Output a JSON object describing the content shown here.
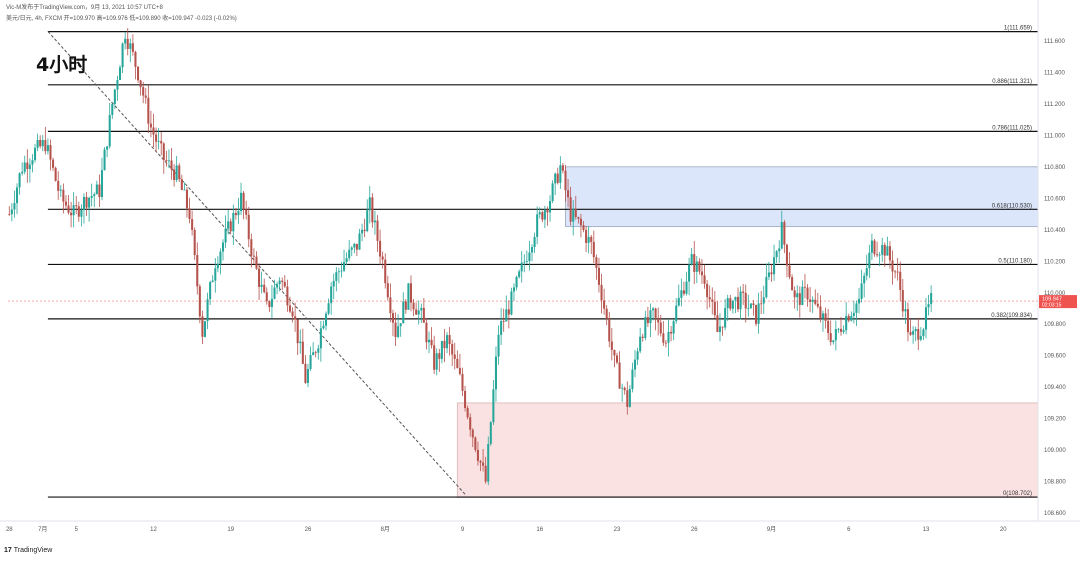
{
  "header": {
    "line1": "Vic-M发布于TradingView.com，9月 13, 2021 10:57 UTC+8",
    "line2": "美元/日元, 4h, FXCM  开=109.970  高=109.976  低=109.890  收=109.947  -0.023 (-0.02%)"
  },
  "timeframe_label": "4小时",
  "branding": {
    "logo_mark": "17",
    "text": "TradingView"
  },
  "colors": {
    "up": "#26a69a",
    "down": "#b5524c",
    "level_line": "#111111",
    "supply_zone": "#dbe6fa",
    "demand_zone": "#fbe2e2",
    "price_line": "#f28b82",
    "price_badge": "#ef5350"
  },
  "chart_data": {
    "type": "candlestick",
    "symbol": "USD/JPY",
    "interval": "4h",
    "ylim": [
      108.55,
      111.72
    ],
    "y_ticks": [
      "111.600",
      "111.400",
      "111.200",
      "111.000",
      "110.800",
      "110.600",
      "110.400",
      "110.200",
      "110.000",
      "109.800",
      "109.600",
      "109.400",
      "109.200",
      "109.000",
      "108.800",
      "108.600"
    ],
    "x_ticks": [
      {
        "label": "28",
        "bar": 0
      },
      {
        "label": "7月",
        "bar": 13
      },
      {
        "label": "5",
        "bar": 26
      },
      {
        "label": "12",
        "bar": 56
      },
      {
        "label": "19",
        "bar": 86
      },
      {
        "label": "26",
        "bar": 116
      },
      {
        "label": "8月",
        "bar": 146
      },
      {
        "label": "9",
        "bar": 176
      },
      {
        "label": "16",
        "bar": 206
      },
      {
        "label": "23",
        "bar": 236
      },
      {
        "label": "26",
        "bar": 266
      },
      {
        "label": "9月",
        "bar": 296
      },
      {
        "label": "6",
        "bar": 326
      },
      {
        "label": "13",
        "bar": 356
      },
      {
        "label": "20",
        "bar": 386
      }
    ],
    "bar_count": 400,
    "fib_levels": [
      {
        "label": "1(111.659)",
        "value": 111.659
      },
      {
        "label": "0.886(111.321)",
        "value": 111.321
      },
      {
        "label": "0.786(111.025)",
        "value": 111.025
      },
      {
        "label": "0.618(110.530)",
        "value": 110.53
      },
      {
        "label": "0.5(110.180)",
        "value": 110.18
      },
      {
        "label": "0.382(109.834)",
        "value": 109.834
      },
      {
        "label": "0(108.702)",
        "value": 108.702
      }
    ],
    "fib_x_start_bar": 15,
    "current_price": {
      "label": "109.947",
      "value": 109.947,
      "countdown": "02:03:15"
    },
    "zones": [
      {
        "name": "supply",
        "x0_bar": 216,
        "x1_bar": 400,
        "top": 110.8,
        "bottom": 110.42
      },
      {
        "name": "demand",
        "x0_bar": 174,
        "x1_bar": 400,
        "top": 109.3,
        "bottom": 108.7
      }
    ],
    "trendline": {
      "x0_bar": 15,
      "y0": 111.66,
      "x1_bar": 177,
      "y1": 108.72
    },
    "path": [
      [
        0,
        110.5
      ],
      [
        5,
        110.8
      ],
      [
        10,
        110.9
      ],
      [
        14,
        110.95
      ],
      [
        20,
        110.6
      ],
      [
        25,
        110.5
      ],
      [
        30,
        110.6
      ],
      [
        35,
        110.65
      ],
      [
        40,
        111.2
      ],
      [
        45,
        111.66
      ],
      [
        50,
        111.4
      ],
      [
        55,
        111.05
      ],
      [
        60,
        110.85
      ],
      [
        65,
        110.75
      ],
      [
        70,
        110.5
      ],
      [
        75,
        109.75
      ],
      [
        80,
        110.2
      ],
      [
        85,
        110.4
      ],
      [
        90,
        110.6
      ],
      [
        95,
        110.2
      ],
      [
        100,
        109.9
      ],
      [
        105,
        110.1
      ],
      [
        110,
        109.9
      ],
      [
        115,
        109.45
      ],
      [
        120,
        109.7
      ],
      [
        125,
        110.05
      ],
      [
        130,
        110.2
      ],
      [
        135,
        110.3
      ],
      [
        140,
        110.55
      ],
      [
        145,
        110.2
      ],
      [
        150,
        109.75
      ],
      [
        155,
        110.0
      ],
      [
        160,
        109.85
      ],
      [
        165,
        109.55
      ],
      [
        170,
        109.7
      ],
      [
        175,
        109.45
      ],
      [
        180,
        109.1
      ],
      [
        185,
        108.8
      ],
      [
        190,
        109.75
      ],
      [
        195,
        109.95
      ],
      [
        200,
        110.2
      ],
      [
        205,
        110.45
      ],
      [
        210,
        110.6
      ],
      [
        214,
        110.8
      ],
      [
        218,
        110.5
      ],
      [
        222,
        110.42
      ],
      [
        226,
        110.3
      ],
      [
        230,
        110.0
      ],
      [
        235,
        109.55
      ],
      [
        240,
        109.3
      ],
      [
        245,
        109.75
      ],
      [
        250,
        109.85
      ],
      [
        255,
        109.7
      ],
      [
        260,
        109.95
      ],
      [
        265,
        110.2
      ],
      [
        270,
        110.1
      ],
      [
        275,
        109.75
      ],
      [
        280,
        109.95
      ],
      [
        285,
        109.95
      ],
      [
        290,
        109.85
      ],
      [
        295,
        110.1
      ],
      [
        300,
        110.4
      ],
      [
        305,
        109.95
      ],
      [
        310,
        110.0
      ],
      [
        315,
        109.85
      ],
      [
        320,
        109.7
      ],
      [
        325,
        109.85
      ],
      [
        330,
        109.95
      ],
      [
        335,
        110.3
      ],
      [
        340,
        110.28
      ],
      [
        345,
        110.1
      ],
      [
        350,
        109.7
      ],
      [
        355,
        109.8
      ],
      [
        358,
        109.947
      ]
    ]
  }
}
